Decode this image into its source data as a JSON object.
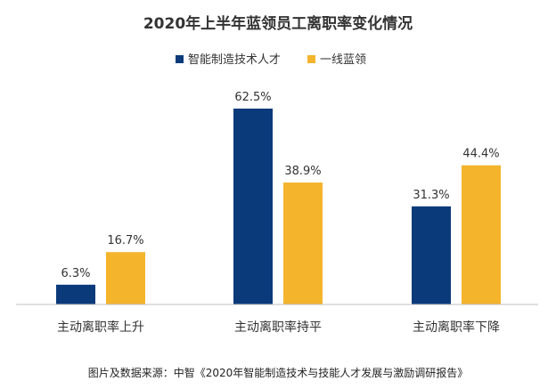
{
  "chart_data": {
    "type": "bar",
    "title": "2020年上半年蓝领员工离职率变化情况",
    "categories": [
      "主动离职率上升",
      "主动离职率持平",
      "主动离职率下降"
    ],
    "series": [
      {
        "name": "智能制造技术人才",
        "color": "#0b3a7b",
        "values": [
          6.3,
          62.5,
          31.3
        ],
        "labels": [
          "6.3%",
          "62.5%",
          "31.3%"
        ]
      },
      {
        "name": "一线蓝领",
        "color": "#f4b42c",
        "values": [
          16.7,
          38.9,
          44.4
        ],
        "labels": [
          "16.7%",
          "38.9%",
          "44.4%"
        ]
      }
    ],
    "ylim": [
      0,
      62.5
    ],
    "grid": false,
    "legend_position": "top-right",
    "source": "图片及数据来源：中智《2020年智能制造技术与技能人才发展与激励调研报告》"
  }
}
